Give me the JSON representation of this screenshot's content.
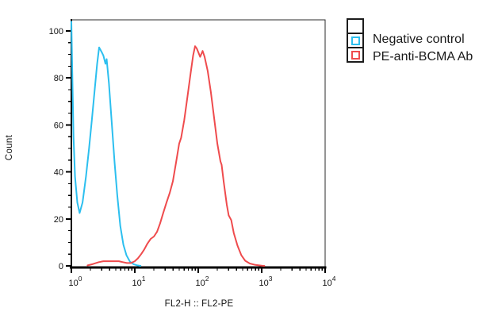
{
  "colors": {
    "negative_control": "#2CBFEF",
    "pe_anti_bcma": "#EF4B4D",
    "axis": "#000000",
    "frame": "#2b2b2b",
    "text": "#111111",
    "legend_border": "#1c1c1c",
    "background": "#ffffff"
  },
  "legend": {
    "items": [
      {
        "label": "Negative control",
        "color": "#2CBFEF"
      },
      {
        "label": "PE-anti-BCMA Ab",
        "color": "#EF4B4D"
      }
    ]
  },
  "chart_data": {
    "type": "line",
    "title": "",
    "xlabel": "FL2-H :: FL2-PE",
    "ylabel": "Count",
    "x_scale": "log10",
    "xlim": [
      1,
      10000
    ],
    "ylim": [
      0,
      100
    ],
    "grid": false,
    "legend_position": "outside-top-right",
    "y_tick_values": [
      0,
      20,
      40,
      60,
      80,
      100
    ],
    "y_minor_tick_step": 5,
    "x_tick_exponents": [
      0,
      1,
      2,
      3,
      4
    ],
    "x_tick_labels": [
      "10^0",
      "10^1",
      "10^2",
      "10^3",
      "10^4"
    ],
    "x_minor_ticks": "2-9 within each decade",
    "series": [
      {
        "name": "Negative control",
        "color": "#2CBFEF",
        "peak": {
          "x": 2.7,
          "count": 93
        },
        "points": [
          [
            1.0,
            104
          ],
          [
            1.04,
            78
          ],
          [
            1.08,
            55
          ],
          [
            1.14,
            38
          ],
          [
            1.24,
            27
          ],
          [
            1.35,
            22.5
          ],
          [
            1.5,
            27
          ],
          [
            1.7,
            38
          ],
          [
            1.9,
            50
          ],
          [
            2.1,
            62
          ],
          [
            2.35,
            76
          ],
          [
            2.55,
            86
          ],
          [
            2.74,
            93
          ],
          [
            3.0,
            91
          ],
          [
            3.2,
            89.5
          ],
          [
            3.45,
            86
          ],
          [
            3.6,
            88
          ],
          [
            3.9,
            78
          ],
          [
            4.3,
            62
          ],
          [
            4.8,
            44
          ],
          [
            5.3,
            30
          ],
          [
            5.9,
            17
          ],
          [
            6.6,
            9
          ],
          [
            7.4,
            4.5
          ],
          [
            8.4,
            1.8
          ],
          [
            9.6,
            0.7
          ],
          [
            11.0,
            0.2
          ],
          [
            12.3,
            0
          ]
        ]
      },
      {
        "name": "PE-anti-BCMA Ab",
        "color": "#EF4B4D",
        "peak": {
          "x": 89,
          "count": 93.5
        },
        "points": [
          [
            1.8,
            0.2
          ],
          [
            2.2,
            0.8
          ],
          [
            2.7,
            1.6
          ],
          [
            3.2,
            2
          ],
          [
            4.5,
            2
          ],
          [
            5.6,
            2
          ],
          [
            6.5,
            1.6
          ],
          [
            7.5,
            1.2
          ],
          [
            8.7,
            1.2
          ],
          [
            10,
            2
          ],
          [
            11.2,
            3.2
          ],
          [
            12.6,
            5
          ],
          [
            14.1,
            7
          ],
          [
            15.8,
            9.5
          ],
          [
            17.8,
            11.5
          ],
          [
            20,
            12.5
          ],
          [
            22.4,
            14.5
          ],
          [
            25,
            18
          ],
          [
            28,
            22.5
          ],
          [
            31.6,
            27
          ],
          [
            35.5,
            31
          ],
          [
            39.8,
            36
          ],
          [
            44.7,
            44
          ],
          [
            50,
            52
          ],
          [
            53.7,
            54.5
          ],
          [
            60,
            62
          ],
          [
            67.6,
            72
          ],
          [
            75.9,
            82
          ],
          [
            83,
            89.5
          ],
          [
            89,
            93.5
          ],
          [
            95,
            92.5
          ],
          [
            100,
            91
          ],
          [
            107,
            89
          ],
          [
            117,
            91.5
          ],
          [
            126,
            89
          ],
          [
            141,
            83
          ],
          [
            158,
            74
          ],
          [
            178,
            63
          ],
          [
            200,
            52
          ],
          [
            224,
            44.5
          ],
          [
            234,
            43
          ],
          [
            251,
            36
          ],
          [
            282,
            26
          ],
          [
            302,
            21.5
          ],
          [
            331,
            19.5
          ],
          [
            363,
            14
          ],
          [
            417,
            8.5
          ],
          [
            478,
            4.5
          ],
          [
            550,
            2.2
          ],
          [
            650,
            1
          ],
          [
            800,
            0.4
          ],
          [
            1000,
            0.1
          ],
          [
            1100,
            0
          ]
        ]
      }
    ]
  }
}
